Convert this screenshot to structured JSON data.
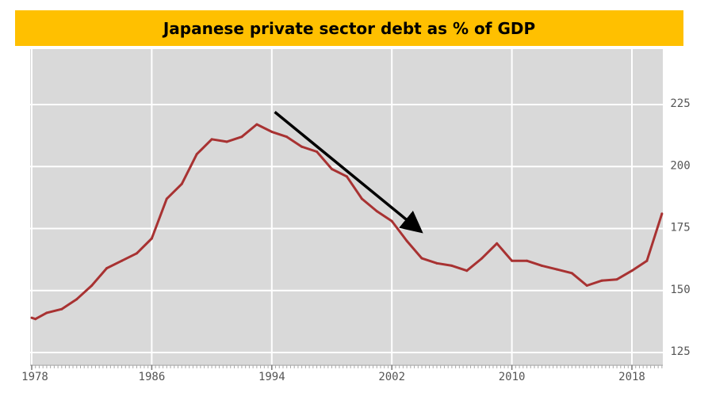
{
  "chart_data": {
    "type": "line",
    "title": "Japanese private sector debt as % of GDP",
    "xlabel": "",
    "ylabel": "",
    "xlim": [
      1978,
      2020
    ],
    "ylim": [
      120,
      250
    ],
    "x_ticks": [
      "1978",
      "1986",
      "1994",
      "2002",
      "2010",
      "2018"
    ],
    "y_ticks": [
      "125",
      "150",
      "175",
      "200",
      "225"
    ],
    "grid": true,
    "colors": {
      "line": "#A83232",
      "plot_bg": "#D9D9D9",
      "grid": "#FFFFFF",
      "arrow": "#000000",
      "banner": "#FFC000"
    },
    "series": [
      {
        "x": [
          1978,
          1978.25,
          1979,
          1980,
          1981,
          1982,
          1983,
          1984,
          1985,
          1986,
          1987,
          1988,
          1989,
          1990,
          1991,
          1992,
          1993,
          1994,
          1995,
          1996,
          1997,
          1998,
          1999,
          2000,
          2001,
          2002,
          2003,
          2004,
          2005,
          2006,
          2007,
          2008,
          2009,
          2010,
          2011,
          2012,
          2013,
          2014,
          2015,
          2016,
          2017,
          2018,
          2019,
          2020
        ],
        "y": [
          139,
          138.5,
          141,
          142.5,
          146.5,
          152,
          159,
          162,
          165,
          171,
          187,
          193,
          205,
          211,
          210,
          212,
          217,
          214,
          212,
          208,
          206,
          199,
          196,
          187,
          182,
          178,
          170,
          163,
          161,
          160,
          158,
          163,
          169,
          162,
          162,
          160,
          158.5,
          157,
          152,
          154,
          154.5,
          158,
          162,
          181
        ]
      }
    ],
    "annotations": [
      {
        "type": "arrow",
        "from": [
          1994.2,
          222
        ],
        "to": [
          2003.8,
          174.5
        ]
      }
    ]
  }
}
